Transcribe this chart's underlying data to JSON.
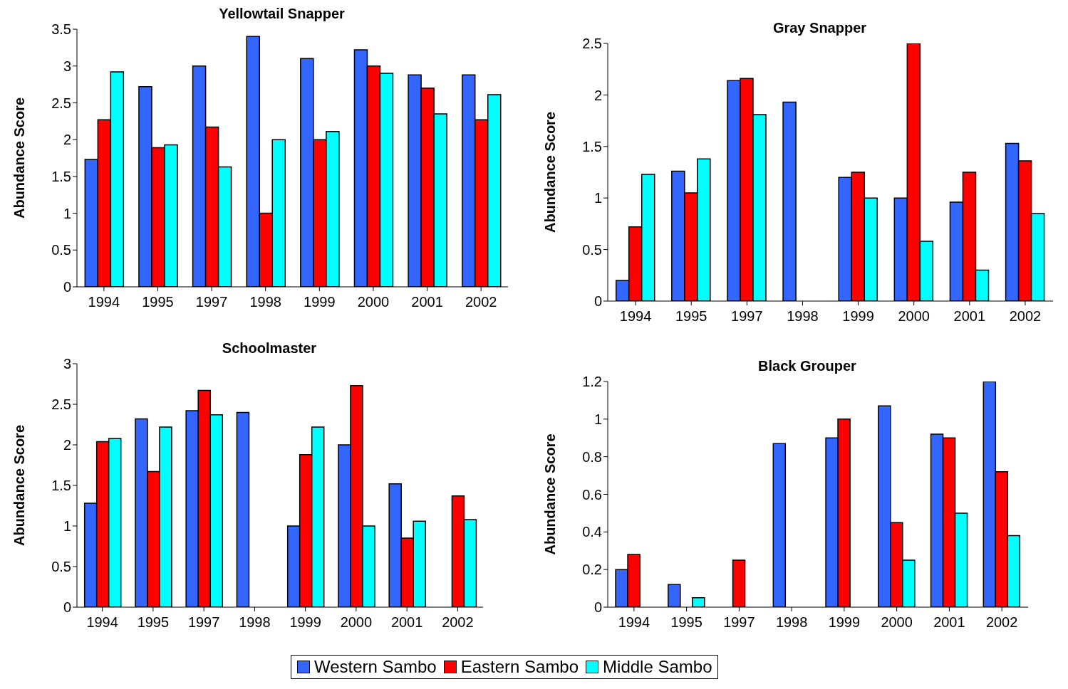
{
  "chart_data": [
    {
      "type": "bar",
      "title": "Yellowtail Snapper",
      "ylabel": "Abundance Score",
      "categories": [
        "1994",
        "1995",
        "1997",
        "1998",
        "1999",
        "2000",
        "2001",
        "2002"
      ],
      "series": [
        {
          "name": "Western Sambo",
          "color": "#3366ff",
          "values": [
            1.73,
            2.72,
            3.0,
            3.4,
            3.1,
            3.22,
            2.88,
            2.88
          ]
        },
        {
          "name": "Eastern Sambo",
          "color": "#ff0000",
          "values": [
            2.27,
            1.89,
            2.17,
            1.0,
            2.0,
            3.0,
            2.7,
            2.27
          ]
        },
        {
          "name": "Middle Sambo",
          "color": "#00ffff",
          "values": [
            2.92,
            1.93,
            1.63,
            2.0,
            2.11,
            2.9,
            2.35,
            2.61
          ]
        }
      ],
      "ylim": [
        0,
        3.5
      ],
      "yticks": [
        0,
        0.5,
        1,
        1.5,
        2,
        2.5,
        3,
        3.5
      ],
      "grid": false,
      "legend": "bottom"
    },
    {
      "type": "bar",
      "title": "Gray Snapper",
      "ylabel": "Abundance Score",
      "categories": [
        "1994",
        "1995",
        "1997",
        "1998",
        "1999",
        "2000",
        "2001",
        "2002"
      ],
      "series": [
        {
          "color": "#3366ff",
          "values": [
            0.2,
            1.26,
            2.14,
            1.93,
            1.2,
            1.0,
            0.96,
            1.53
          ]
        },
        {
          "color": "#ff0000",
          "values": [
            0.72,
            1.05,
            2.16,
            null,
            1.25,
            2.5,
            1.25,
            1.36
          ]
        },
        {
          "color": "#00ffff",
          "values": [
            1.23,
            1.38,
            1.81,
            null,
            1.0,
            0.58,
            0.3,
            0.85
          ]
        }
      ],
      "ylim": [
        0,
        2.5
      ],
      "yticks": [
        0,
        0.5,
        1,
        1.5,
        2,
        2.5
      ],
      "grid": false
    },
    {
      "type": "bar",
      "title": "Schoolmaster",
      "ylabel": "Abundance Score",
      "categories": [
        "1994",
        "1995",
        "1997",
        "1998",
        "1999",
        "2000",
        "2001",
        "2002"
      ],
      "series": [
        {
          "color": "#3366ff",
          "values": [
            1.28,
            2.32,
            2.42,
            2.4,
            1.0,
            2.0,
            1.52,
            null
          ]
        },
        {
          "color": "#ff0000",
          "values": [
            2.04,
            1.67,
            2.67,
            null,
            1.88,
            2.73,
            0.85,
            1.37
          ]
        },
        {
          "color": "#00ffff",
          "values": [
            2.08,
            2.22,
            2.37,
            null,
            2.22,
            1.0,
            1.06,
            1.08
          ]
        }
      ],
      "ylim": [
        0,
        3
      ],
      "yticks": [
        0,
        0.5,
        1,
        1.5,
        2,
        2.5,
        3
      ],
      "grid": false
    },
    {
      "type": "bar",
      "title": "Black Grouper",
      "ylabel": "Abundance Score",
      "categories": [
        "1994",
        "1995",
        "1997",
        "1998",
        "1999",
        "2000",
        "2001",
        "2002"
      ],
      "series": [
        {
          "color": "#3366ff",
          "values": [
            0.2,
            0.12,
            null,
            0.87,
            0.9,
            1.07,
            0.92,
            1.2
          ]
        },
        {
          "color": "#ff0000",
          "values": [
            0.28,
            null,
            0.25,
            null,
            1.0,
            0.45,
            0.9,
            0.72
          ]
        },
        {
          "color": "#00ffff",
          "values": [
            null,
            0.05,
            null,
            null,
            null,
            0.25,
            0.5,
            0.38
          ]
        }
      ],
      "ylim": [
        0,
        1.2
      ],
      "yticks": [
        0,
        0.2,
        0.4,
        0.6,
        0.8,
        1,
        1.2
      ],
      "grid": false
    }
  ]
}
